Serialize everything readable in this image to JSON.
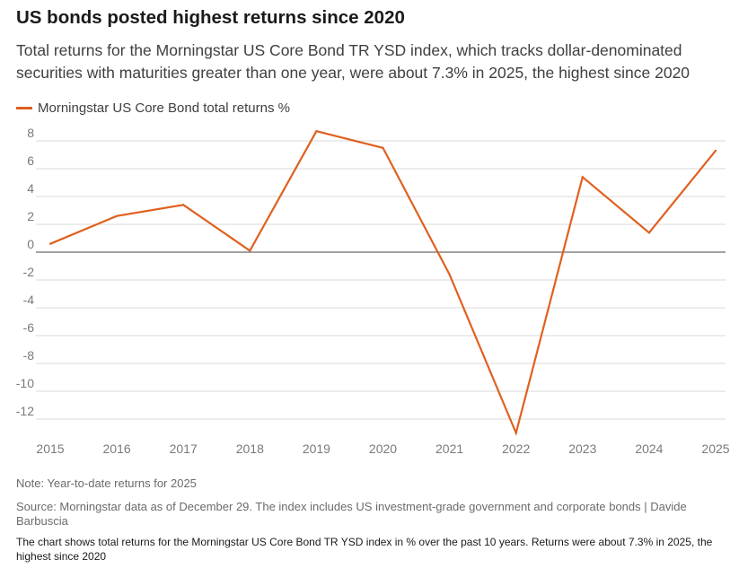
{
  "header": {
    "title": "US bonds posted highest returns since 2020",
    "subtitle": "Total returns for the Morningstar US Core Bond TR YSD index, which tracks dollar-denominated securities with maturities greater than one year, were about 7.3% in 2025, the highest since 2020"
  },
  "legend": {
    "label": "Morningstar US Core Bond total returns %"
  },
  "footer": {
    "note": "Note: Year-to-date returns for 2025",
    "source": "Source: Morningstar data as of December 29. The index includes US investment-grade government and corporate bonds | Davide Barbuscia",
    "description": "The chart shows total returns for the Morningstar US Core Bond TR YSD index in % over the past 10 years. Returns were about 7.3% in 2025, the highest since 2020"
  },
  "colors": {
    "series": "#e0601f",
    "grid": "#d9d9d9",
    "zero_line": "#6b6b6b",
    "tick_text": "#7a7a7a"
  },
  "chart_data": {
    "type": "line",
    "title": "US bonds posted highest returns since 2020",
    "xlabel": "",
    "ylabel": "",
    "categories": [
      "2015",
      "2016",
      "2017",
      "2018",
      "2019",
      "2020",
      "2021",
      "2022",
      "2023",
      "2024",
      "2025"
    ],
    "series": [
      {
        "name": "Morningstar US Core Bond total returns %",
        "values": [
          0.6,
          2.6,
          3.4,
          0.1,
          8.7,
          7.5,
          -1.6,
          -13.0,
          5.4,
          1.4,
          7.3
        ]
      }
    ],
    "yticks": [
      8,
      6,
      4,
      2,
      0,
      -2,
      -4,
      -6,
      -8,
      -10,
      -12
    ],
    "ytick_labels": [
      "8",
      "6",
      "4",
      "2",
      "0",
      "-2",
      "-4",
      "-6",
      "-8",
      "-10",
      "-12"
    ],
    "ylim": [
      -13,
      9
    ],
    "grid": true,
    "legend": "top-left"
  }
}
